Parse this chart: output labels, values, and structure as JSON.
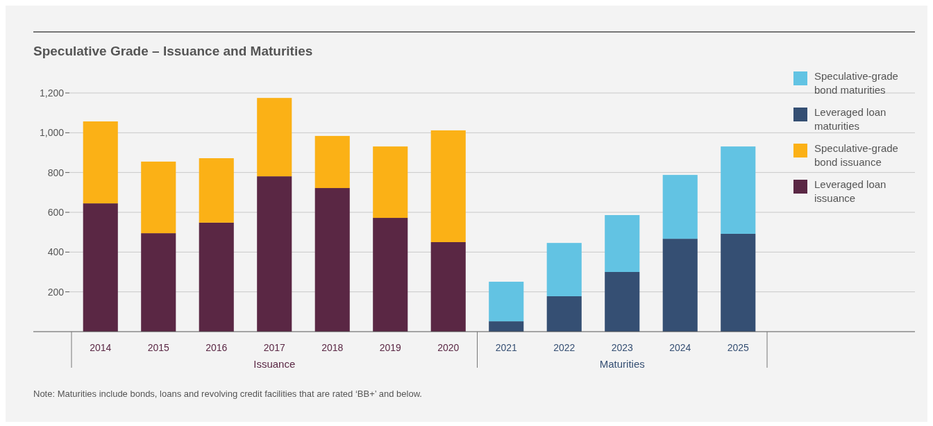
{
  "chart_data": {
    "type": "bar",
    "stacked": true,
    "title": "Speculative Grade – Issuance and Maturities",
    "categories": [
      "2014",
      "2015",
      "2016",
      "2017",
      "2018",
      "2019",
      "2020",
      "2021",
      "2022",
      "2023",
      "2024",
      "2025"
    ],
    "series": [
      {
        "name": "Leveraged loan issuance",
        "color": "#5a2744",
        "values": [
          645,
          495,
          548,
          781,
          722,
          572,
          450,
          null,
          null,
          null,
          null,
          null
        ]
      },
      {
        "name": "Speculative-grade bond issuance",
        "color": "#fbb116",
        "values": [
          412,
          360,
          324,
          394,
          262,
          359,
          562,
          null,
          null,
          null,
          null,
          null
        ]
      },
      {
        "name": "Leveraged loan maturities",
        "color": "#354f73",
        "values": [
          null,
          null,
          null,
          null,
          null,
          null,
          null,
          52,
          178,
          300,
          467,
          492
        ]
      },
      {
        "name": "Speculative-grade bond maturities",
        "color": "#62c3e3",
        "values": [
          null,
          null,
          null,
          null,
          null,
          null,
          null,
          199,
          268,
          286,
          321,
          439
        ]
      }
    ],
    "ylim": [
      0,
      1200
    ],
    "yticks": [
      {
        "value": 200,
        "label": "200"
      },
      {
        "value": 400,
        "label": "400"
      },
      {
        "value": 600,
        "label": "600"
      },
      {
        "value": 800,
        "label": "800"
      },
      {
        "value": 1000,
        "label": "1,000"
      },
      {
        "value": 1200,
        "label": "1,200"
      }
    ],
    "grid": "y",
    "legend": "right",
    "annotations": [
      "Issuance",
      "Maturities",
      "Note: Maturities include bonds, loans and revolving credit facilities that are rated ‘BB+’ and below."
    ]
  }
}
